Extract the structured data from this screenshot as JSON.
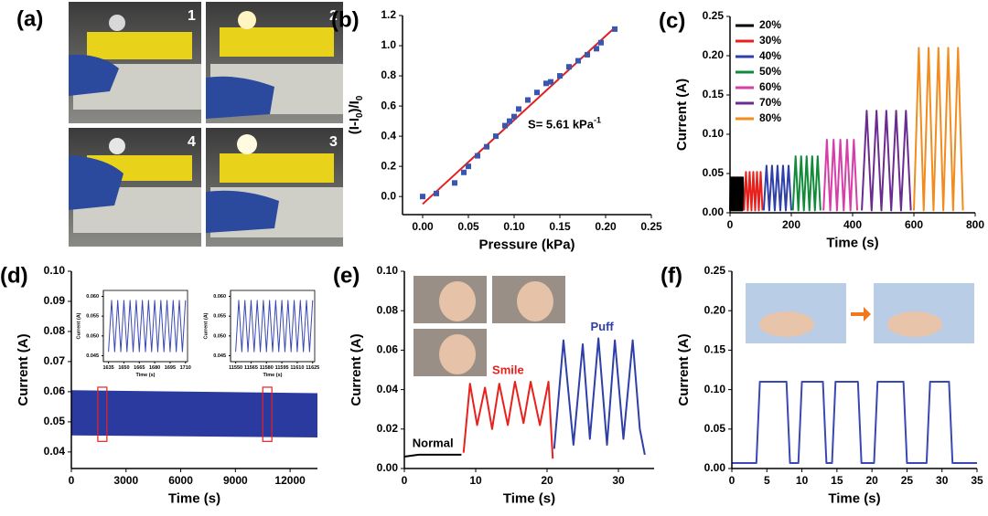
{
  "panel_a": {
    "label": "(a)",
    "photo_numbers": [
      "1",
      "2",
      "4",
      "3"
    ]
  },
  "chart_data": [
    {
      "type": "scatter",
      "panel_label": "(b)",
      "x_label": "Pressure (kPa)",
      "y_label_parts": [
        "(I-I",
        "0",
        ")/I",
        "0"
      ],
      "annotation": {
        "text": "S= 5.61 kPa",
        "superscript": "-1"
      },
      "color": "#3a56b0",
      "x": [
        0,
        0.015,
        0.035,
        0.045,
        0.05,
        0.06,
        0.07,
        0.08,
        0.09,
        0.095,
        0.1,
        0.105,
        0.115,
        0.125,
        0.135,
        0.14,
        0.15,
        0.16,
        0.17,
        0.18,
        0.19,
        0.195,
        0.21
      ],
      "values": [
        0,
        0.02,
        0.09,
        0.16,
        0.2,
        0.27,
        0.33,
        0.4,
        0.47,
        0.5,
        0.53,
        0.58,
        0.64,
        0.69,
        0.75,
        0.76,
        0.8,
        0.86,
        0.9,
        0.94,
        0.98,
        1.02,
        1.11
      ],
      "fit_line": {
        "x": [
          0,
          0.21
        ],
        "y": [
          -0.05,
          1.12
        ],
        "color": "#e02020"
      },
      "xlim": [
        -0.022,
        0.25
      ],
      "xticks": [
        {
          "value": 0,
          "label": "0.00"
        },
        0.05,
        {
          "value": 0.1,
          "label": "0.10"
        },
        0.15,
        {
          "value": 0.2,
          "label": "0.20"
        },
        0.25
      ],
      "ylim": [
        -0.12,
        1.2
      ],
      "yticks": [
        {
          "value": 0,
          "label": "0.0"
        },
        0.2,
        0.4,
        0.6,
        0.8,
        {
          "value": 1,
          "label": "1.0"
        },
        1.2
      ]
    },
    {
      "type": "line",
      "panel_label": "(c)",
      "x_label": "Time (s)",
      "y_label": "Current (A)",
      "legend": "upper left",
      "xlim": [
        0,
        800
      ],
      "xticks": [
        0,
        200,
        400,
        600,
        800
      ],
      "ylim": [
        0,
        0.25
      ],
      "yticks": [
        {
          "value": 0,
          "label": "0.00"
        },
        0.05,
        {
          "value": 0.1,
          "label": "0.10"
        },
        0.15,
        {
          "value": 0.2,
          "label": "0.20"
        },
        0.25
      ],
      "series": [
        {
          "name": "20%",
          "color": "#000000",
          "x": [
            0,
            2,
            4,
            6,
            8,
            10,
            12,
            14,
            16,
            18,
            20,
            22,
            24,
            26,
            28,
            30,
            32,
            34,
            36,
            38,
            40,
            42,
            44
          ],
          "values": [
            0.003,
            0.045,
            0.003,
            0.045,
            0.003,
            0.045,
            0.003,
            0.045,
            0.003,
            0.045,
            0.003,
            0.045,
            0.003,
            0.045,
            0.003,
            0.045,
            0.003,
            0.045,
            0.003,
            0.045,
            0.003,
            0.045,
            0.003
          ]
        },
        {
          "name": "30%",
          "color": "#e8211d",
          "x": [
            46,
            52,
            58,
            64,
            70,
            76,
            82,
            88,
            94,
            100,
            106
          ],
          "values": [
            0.003,
            0.052,
            0.003,
            0.052,
            0.003,
            0.052,
            0.003,
            0.052,
            0.003,
            0.052,
            0.003
          ]
        },
        {
          "name": "40%",
          "color": "#2f3fa8",
          "x": [
            110,
            119,
            128,
            137,
            146,
            155,
            164,
            173,
            182,
            191,
            200
          ],
          "values": [
            0.003,
            0.06,
            0.003,
            0.06,
            0.003,
            0.06,
            0.003,
            0.06,
            0.003,
            0.06,
            0.003
          ]
        },
        {
          "name": "50%",
          "color": "#118a3a",
          "x": [
            205,
            214,
            223,
            232,
            241,
            250,
            259,
            268,
            277,
            286,
            295
          ],
          "values": [
            0.003,
            0.072,
            0.003,
            0.072,
            0.003,
            0.072,
            0.003,
            0.072,
            0.003,
            0.072,
            0.003
          ]
        },
        {
          "name": "60%",
          "color": "#d63fa8",
          "x": [
            305,
            316,
            327,
            338,
            349,
            360,
            371,
            382,
            393,
            404,
            415
          ],
          "values": [
            0.003,
            0.093,
            0.003,
            0.093,
            0.003,
            0.093,
            0.003,
            0.093,
            0.003,
            0.093,
            0.003
          ]
        },
        {
          "name": "70%",
          "color": "#6a2c91",
          "x": [
            430,
            446,
            462,
            478,
            494,
            510,
            526,
            542,
            558,
            574,
            590
          ],
          "values": [
            0.003,
            0.13,
            0.003,
            0.13,
            0.003,
            0.13,
            0.003,
            0.13,
            0.003,
            0.13,
            0.003
          ]
        },
        {
          "name": "80%",
          "color": "#f28c1e",
          "x": [
            600,
            616,
            632,
            648,
            664,
            680,
            696,
            712,
            728,
            744,
            760
          ],
          "values": [
            0.003,
            0.21,
            0.003,
            0.21,
            0.003,
            0.21,
            0.003,
            0.21,
            0.003,
            0.21,
            0.003
          ]
        }
      ]
    },
    {
      "type": "area",
      "panel_label": "(d)",
      "x_label": "Time (s)",
      "y_label": "Current (A)",
      "color": "#2b3a9e",
      "x": [
        0,
        13500
      ],
      "upper": [
        0.0605,
        0.0595
      ],
      "lower": [
        0.0455,
        0.0448
      ],
      "highlights": [
        {
          "x": [
            1450,
            1950
          ],
          "y": [
            0.0435,
            0.0615
          ]
        },
        {
          "x": [
            10500,
            11000
          ],
          "y": [
            0.0435,
            0.0615
          ]
        }
      ],
      "xlim": [
        0,
        13500
      ],
      "xticks": [
        0,
        3000,
        6000,
        9000,
        12000
      ],
      "ylim": [
        0.0345,
        0.1
      ],
      "yticks": [
        0.04,
        0.05,
        0.06,
        0.07,
        0.08,
        0.09,
        {
          "value": 0.1,
          "label": "0.10"
        }
      ],
      "insets": [
        {
          "type": "line",
          "x_label": "Time (s)",
          "y_label": "Current (A)",
          "xlim": [
            1630,
            1712
          ],
          "xticks": [
            1635,
            1650,
            1665,
            1680,
            1695,
            1710
          ],
          "ylim": [
            0.0435,
            0.0615
          ],
          "yticks": [
            0.045,
            {
              "value": 0.05,
              "label": "0.050"
            },
            0.055,
            {
              "value": 0.06,
              "label": "0.060"
            }
          ],
          "series": [
            {
              "color": "#3a48b5",
              "x": [
                1635,
                1638,
                1641,
                1644,
                1647,
                1650,
                1653,
                1656,
                1659,
                1662,
                1665,
                1668,
                1671,
                1674,
                1677,
                1680,
                1683,
                1686,
                1689,
                1692,
                1695,
                1698,
                1701,
                1704,
                1707,
                1710
              ],
              "values": [
                0.046,
                0.059,
                0.046,
                0.059,
                0.046,
                0.059,
                0.046,
                0.059,
                0.046,
                0.059,
                0.046,
                0.059,
                0.046,
                0.059,
                0.046,
                0.059,
                0.046,
                0.059,
                0.046,
                0.059,
                0.046,
                0.059,
                0.046,
                0.059,
                0.046,
                0.059
              ]
            }
          ]
        },
        {
          "type": "line",
          "x_label": "Time (s)",
          "y_label": "Current (A)",
          "xlim": [
            11545,
            11627
          ],
          "xticks": [
            11550,
            11565,
            11580,
            11595,
            11610,
            11625
          ],
          "ylim": [
            0.0435,
            0.0615
          ],
          "yticks": [
            0.045,
            {
              "value": 0.05,
              "label": "0.050"
            },
            0.055,
            {
              "value": 0.06,
              "label": "0.060"
            }
          ],
          "series": [
            {
              "color": "#3a48b5",
              "x": [
                11550,
                11553,
                11556,
                11559,
                11562,
                11565,
                11568,
                11571,
                11574,
                11577,
                11580,
                11583,
                11586,
                11589,
                11592,
                11595,
                11598,
                11601,
                11604,
                11607,
                11610,
                11613,
                11616,
                11619,
                11622,
                11625
              ],
              "values": [
                0.046,
                0.059,
                0.046,
                0.059,
                0.046,
                0.059,
                0.046,
                0.059,
                0.046,
                0.059,
                0.046,
                0.059,
                0.046,
                0.059,
                0.046,
                0.059,
                0.046,
                0.059,
                0.046,
                0.059,
                0.046,
                0.059,
                0.046,
                0.059,
                0.046,
                0.059
              ]
            }
          ]
        }
      ]
    },
    {
      "type": "line",
      "panel_label": "(e)",
      "x_label": "Time (s)",
      "y_label": "Current (A)",
      "direct_labels": true,
      "xlim": [
        0,
        35
      ],
      "xticks": [
        0,
        10,
        20,
        30
      ],
      "ylim": [
        0,
        0.1
      ],
      "yticks": [
        {
          "value": 0,
          "label": "0.00"
        },
        0.02,
        0.04,
        0.06,
        0.08,
        {
          "value": 0.1,
          "label": "0.10"
        }
      ],
      "series": [
        {
          "name": "Normal",
          "color": "#000000",
          "x": [
            0,
            2,
            4,
            6,
            8
          ],
          "values": [
            0.006,
            0.007,
            0.007,
            0.007,
            0.007
          ]
        },
        {
          "name": "Smile",
          "color": "#e8211d",
          "x": [
            8.3,
            9.2,
            10.2,
            11.3,
            12.3,
            13.3,
            14.5,
            15.5,
            16.7,
            17.7,
            19,
            20.2,
            20.8
          ],
          "values": [
            0.008,
            0.043,
            0.022,
            0.041,
            0.02,
            0.043,
            0.022,
            0.044,
            0.023,
            0.044,
            0.022,
            0.044,
            0.005
          ]
        },
        {
          "name": "Puff",
          "color": "#2f3fa8",
          "x": [
            21,
            22.3,
            23.7,
            25,
            26,
            27.2,
            28.4,
            29.5,
            30.7,
            32,
            33,
            33.7
          ],
          "values": [
            0.01,
            0.065,
            0.012,
            0.063,
            0.015,
            0.066,
            0.012,
            0.065,
            0.015,
            0.065,
            0.02,
            0.007
          ]
        }
      ]
    },
    {
      "type": "line",
      "panel_label": "(f)",
      "x_label": "Time (s)",
      "y_label": "Current (A)",
      "xlim": [
        0,
        35
      ],
      "xticks": [
        0,
        5,
        10,
        15,
        20,
        25,
        30,
        35
      ],
      "ylim": [
        0,
        0.25
      ],
      "yticks": [
        {
          "value": 0,
          "label": "0.00"
        },
        0.05,
        {
          "value": 0.1,
          "label": "0.10"
        },
        0.15,
        {
          "value": 0.2,
          "label": "0.20"
        },
        0.25
      ],
      "series": [
        {
          "color": "#3a48b5",
          "x": [
            0,
            3.5,
            4,
            7.8,
            8.3,
            9.5,
            10,
            13,
            13.5,
            14.3,
            14.8,
            18,
            18.5,
            20.3,
            20.8,
            24.5,
            25,
            27.8,
            28.3,
            31,
            31.5,
            35
          ],
          "values": [
            0.007,
            0.007,
            0.11,
            0.11,
            0.007,
            0.007,
            0.11,
            0.11,
            0.007,
            0.007,
            0.11,
            0.11,
            0.007,
            0.007,
            0.11,
            0.11,
            0.007,
            0.007,
            0.11,
            0.11,
            0.007,
            0.007
          ]
        }
      ]
    }
  ]
}
